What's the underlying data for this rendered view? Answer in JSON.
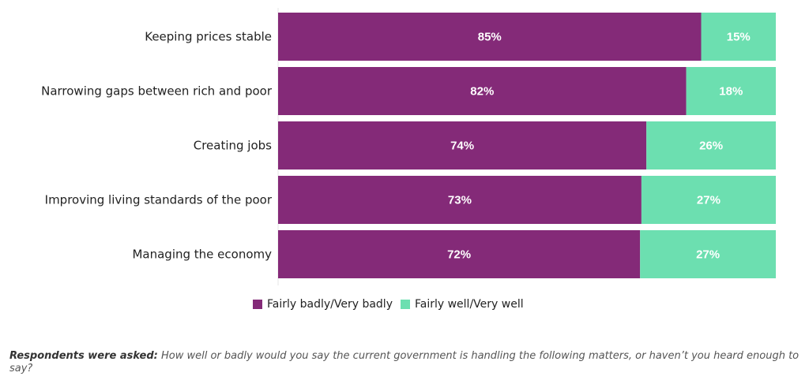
{
  "chart_data": {
    "type": "bar",
    "orientation": "horizontal",
    "stacked": true,
    "categories": [
      "Keeping prices stable",
      "Narrowing gaps between rich and poor",
      "Creating jobs",
      "Improving living standards of the poor",
      "Managing the economy"
    ],
    "series": [
      {
        "name": "Fairly badly/Very badly",
        "color": "#842a78",
        "values": [
          85,
          82,
          74,
          73,
          72
        ]
      },
      {
        "name": "Fairly well/Very well",
        "color": "#6cdfb0",
        "values": [
          15,
          18,
          26,
          27,
          27
        ]
      }
    ],
    "value_labels": [
      [
        "85%",
        "82%",
        "74%",
        "73%",
        "72%"
      ],
      [
        "15%",
        "18%",
        "26%",
        "27%",
        "27%"
      ]
    ],
    "title": "",
    "xlabel": "",
    "ylabel": "",
    "xlim": [
      0,
      100
    ],
    "grid": false,
    "legend_position": "bottom"
  },
  "footnote": {
    "prefix": "Respondents were asked:",
    "text": " How well or badly would you say the current government is handling the following matters, or haven’t you heard enough to say?"
  }
}
